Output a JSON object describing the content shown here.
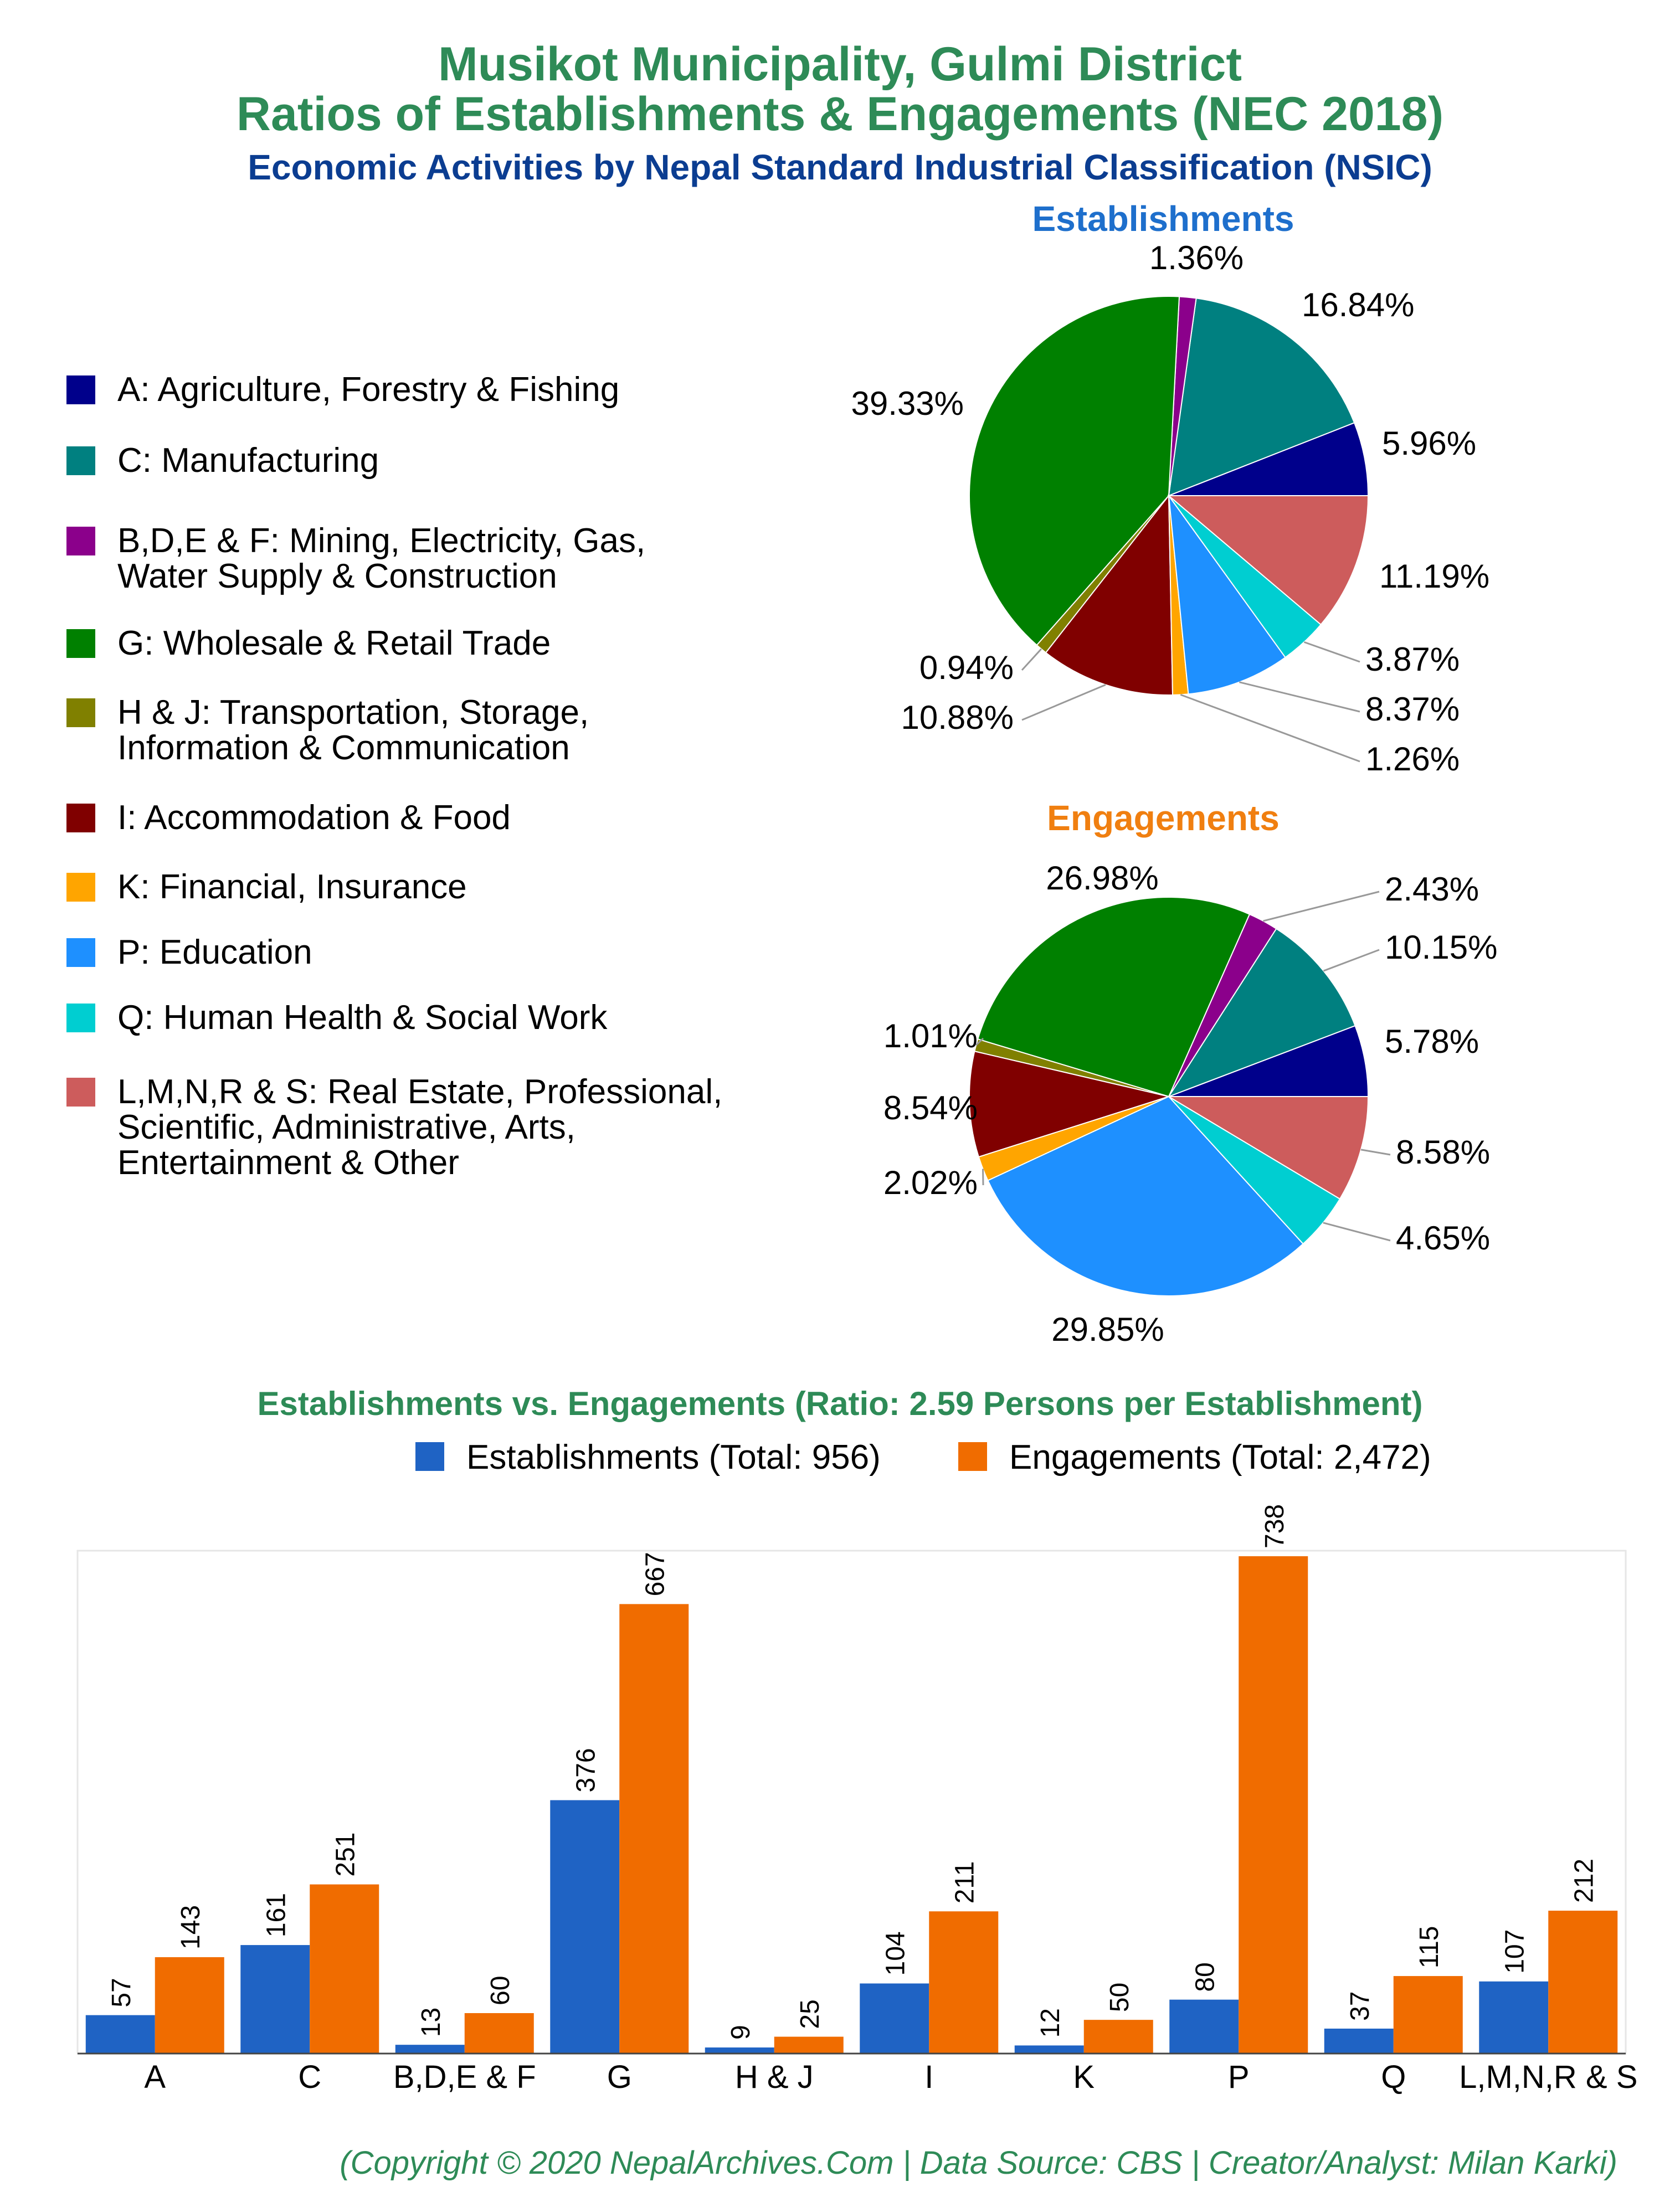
{
  "title_line1": "Musikot Municipality, Gulmi District",
  "title_line2": "Ratios of Establishments & Engagements (NEC 2018)",
  "subtitle": "Economic Activities by Nepal Standard Industrial Classification (NSIC)",
  "establishments_title": "Establishments",
  "engagements_title": "Engagements",
  "legend": [
    {
      "label": "A: Agriculture, Forestry & Fishing",
      "color": "#00008b"
    },
    {
      "label": "C: Manufacturing",
      "color": "#008080"
    },
    {
      "label": "B,D,E & F: Mining, Electricity, Gas,\nWater Supply & Construction",
      "color": "#8b008b"
    },
    {
      "label": "G: Wholesale & Retail Trade",
      "color": "#008000"
    },
    {
      "label": "H & J: Transportation, Storage,\nInformation & Communication",
      "color": "#808000"
    },
    {
      "label": "I: Accommodation & Food",
      "color": "#800000"
    },
    {
      "label": "K: Financial, Insurance",
      "color": "#ffa500"
    },
    {
      "label": "P: Education",
      "color": "#1e90ff"
    },
    {
      "label": "Q: Human Health & Social Work",
      "color": "#00ced1"
    },
    {
      "label": "L,M,N,R & S: Real Estate, Professional,\nScientific, Administrative, Arts,\nEntertainment & Other",
      "color": "#cd5c5c"
    }
  ],
  "bar_title": "Establishments vs. Engagements (Ratio: 2.59 Persons per Establishment)",
  "bar_legend": {
    "establishments": "Establishments (Total: 956)",
    "engagements": "Engagements (Total: 2,472)",
    "establishments_color": "#1f63c4",
    "engagements_color": "#f06c00"
  },
  "footer": "(Copyright © 2020 NepalArchives.Com | Data Source: CBS | Creator/Analyst: Milan Karki)",
  "chart_data": [
    {
      "type": "pie",
      "title": "Establishments",
      "categories": [
        "A",
        "C",
        "B,D,E & F",
        "G",
        "H & J",
        "I",
        "K",
        "P",
        "Q",
        "L,M,N,R & S"
      ],
      "values": [
        5.96,
        16.84,
        1.36,
        39.33,
        0.94,
        10.88,
        1.26,
        8.37,
        3.87,
        11.19
      ],
      "labels": [
        "5.96%",
        "16.84%",
        "1.36%",
        "39.33%",
        "0.94%",
        "10.88%",
        "1.26%",
        "8.37%",
        "3.87%",
        "11.19%"
      ]
    },
    {
      "type": "pie",
      "title": "Engagements",
      "categories": [
        "A",
        "C",
        "B,D,E & F",
        "G",
        "H & J",
        "I",
        "K",
        "P",
        "Q",
        "L,M,N,R & S"
      ],
      "values": [
        5.78,
        10.15,
        2.43,
        26.98,
        1.01,
        8.54,
        2.02,
        29.85,
        4.65,
        8.58
      ],
      "labels": [
        "5.78%",
        "10.15%",
        "2.43%",
        "26.98%",
        "1.01%",
        "8.54%",
        "2.02%",
        "29.85%",
        "4.65%",
        "8.58%"
      ]
    },
    {
      "type": "bar",
      "title": "Establishments vs. Engagements (Ratio: 2.59 Persons per Establishment)",
      "categories": [
        "A",
        "C",
        "B,D,E & F",
        "G",
        "H & J",
        "I",
        "K",
        "P",
        "Q",
        "L,M,N,R & S"
      ],
      "series": [
        {
          "name": "Establishments (Total: 956)",
          "values": [
            57,
            161,
            13,
            376,
            9,
            104,
            12,
            80,
            37,
            107
          ]
        },
        {
          "name": "Engagements (Total: 2,472)",
          "values": [
            143,
            251,
            60,
            667,
            25,
            211,
            50,
            738,
            115,
            212
          ]
        }
      ],
      "ylim": [
        0,
        738
      ]
    }
  ]
}
